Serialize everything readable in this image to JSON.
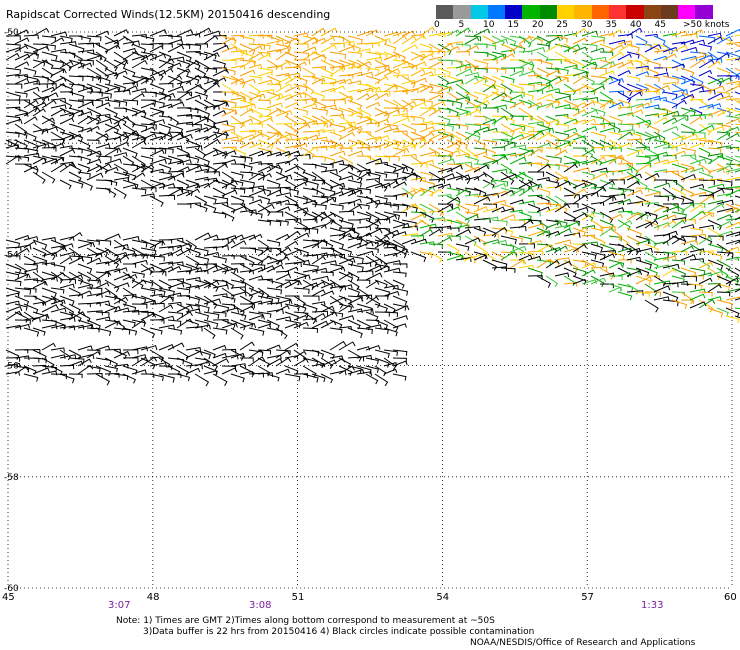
{
  "title": "Rapidscat Corrected Winds(12.5KM) 20150416 descending",
  "legend": {
    "colors": [
      "#5a5a5a",
      "#9a9a9a",
      "#00c8e6",
      "#0078ff",
      "#0000c8",
      "#00b400",
      "#008c00",
      "#ffd200",
      "#ffb400",
      "#ff6400",
      "#ff3232",
      "#c80000",
      "#8b4513",
      "#6b3a1f",
      "#ff00ff",
      "#9400d3"
    ],
    "labels": [
      "0",
      "5",
      "10",
      "15",
      "20",
      "25",
      "30",
      "35",
      "40",
      "45"
    ],
    "units": ">50 knots"
  },
  "chart_data": {
    "type": "wind-barb-map",
    "xlim": [
      45,
      60
    ],
    "ylim": [
      -60,
      -50
    ],
    "x_ticks": [
      "45",
      "48",
      "51",
      "54",
      "57",
      "60"
    ],
    "y_ticks": [
      "-50",
      "-52",
      "-54",
      "-56",
      "-58",
      "-60"
    ],
    "grid": true,
    "swaths": [
      {
        "name": "northern swath",
        "color_mix": [
          "black",
          "orange",
          "yellow",
          "green",
          "blue"
        ]
      },
      {
        "name": "southern swath",
        "color_mix": [
          "black"
        ]
      }
    ]
  },
  "times": [
    "3:07",
    "3:08",
    "1:33"
  ],
  "notes": [
    "Note: 1) Times are GMT 2)Times along bottom correspond to measurement at ~50S",
    "3)Data buffer is 22 hrs from 20150416 4) Black circles indicate possible contamination",
    "NOAA/NESDIS/Office of Research and Applications"
  ]
}
